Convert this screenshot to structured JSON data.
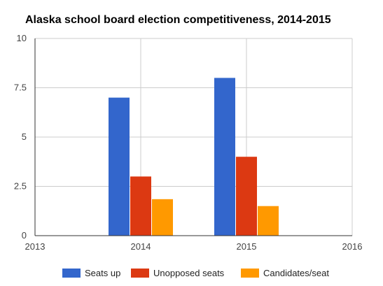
{
  "chart_data": {
    "type": "bar",
    "title": "Alaska school board election competitiveness, 2014-2015",
    "xlabel": "",
    "ylabel": "",
    "x_axis": {
      "min": 2013,
      "max": 2016,
      "ticks": [
        2013,
        2014,
        2015,
        2016
      ],
      "tick_labels": [
        "2013",
        "2014",
        "2015",
        "2016"
      ]
    },
    "y_axis": {
      "min": 0,
      "max": 10,
      "ticks": [
        0,
        2.5,
        5,
        7.5,
        10
      ],
      "tick_labels": [
        "0",
        "2.5",
        "5",
        "7.5",
        "10"
      ]
    },
    "x": [
      2014,
      2015
    ],
    "series": [
      {
        "name": "Seats up",
        "color": "#3366cc",
        "values": [
          7,
          8
        ]
      },
      {
        "name": "Unopposed seats",
        "color": "#dc3912",
        "values": [
          3,
          4
        ]
      },
      {
        "name": "Candidates/seat",
        "color": "#ff9900",
        "values": [
          1.85,
          1.5
        ]
      }
    ],
    "grid": true,
    "legend_position": "bottom"
  }
}
